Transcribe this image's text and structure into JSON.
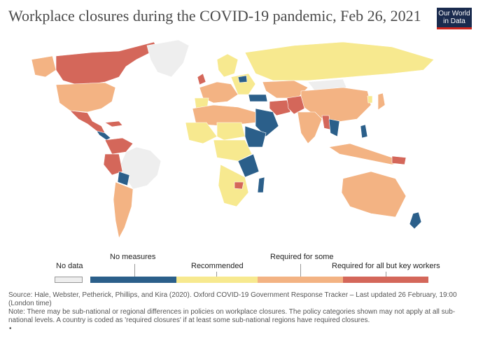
{
  "title": "Workplace closures during the COVID-19 pandemic, Feb 26, 2021",
  "logo": {
    "line1": "Our World",
    "line2": "in Data",
    "colors": {
      "bg": "#1a2b4e",
      "accent": "#ce261e"
    }
  },
  "legend": {
    "no_data": {
      "label": "No data",
      "color": "#eeeeee"
    },
    "categories": [
      {
        "label": "No measures",
        "color": "#2b5f8a"
      },
      {
        "label": "Recommended",
        "color": "#f7e98f"
      },
      {
        "label": "Required for some",
        "color": "#f3b383"
      },
      {
        "label": "Required for all but key workers",
        "color": "#d4675a"
      }
    ]
  },
  "footer": {
    "source": "Source: Hale, Webster, Petherick, Phillips, and Kira (2020). Oxford COVID-19 Government Response Tracker – Last updated 26 February, 19:00 (London time)",
    "note": "Note: There may be sub-national or regional differences in policies on workplace closures. The policy categories shown may not apply at all sub-national levels. A country is coded as 'required closures' if at least some sub-national regions have required closures.",
    "bullet": "•"
  },
  "colors": {
    "no_data": "#eeeeee",
    "no_measures": "#2b5f8a",
    "recommended": "#f7e98f",
    "required_some": "#f3b383",
    "required_all": "#d4675a",
    "border": "#ffffff"
  }
}
